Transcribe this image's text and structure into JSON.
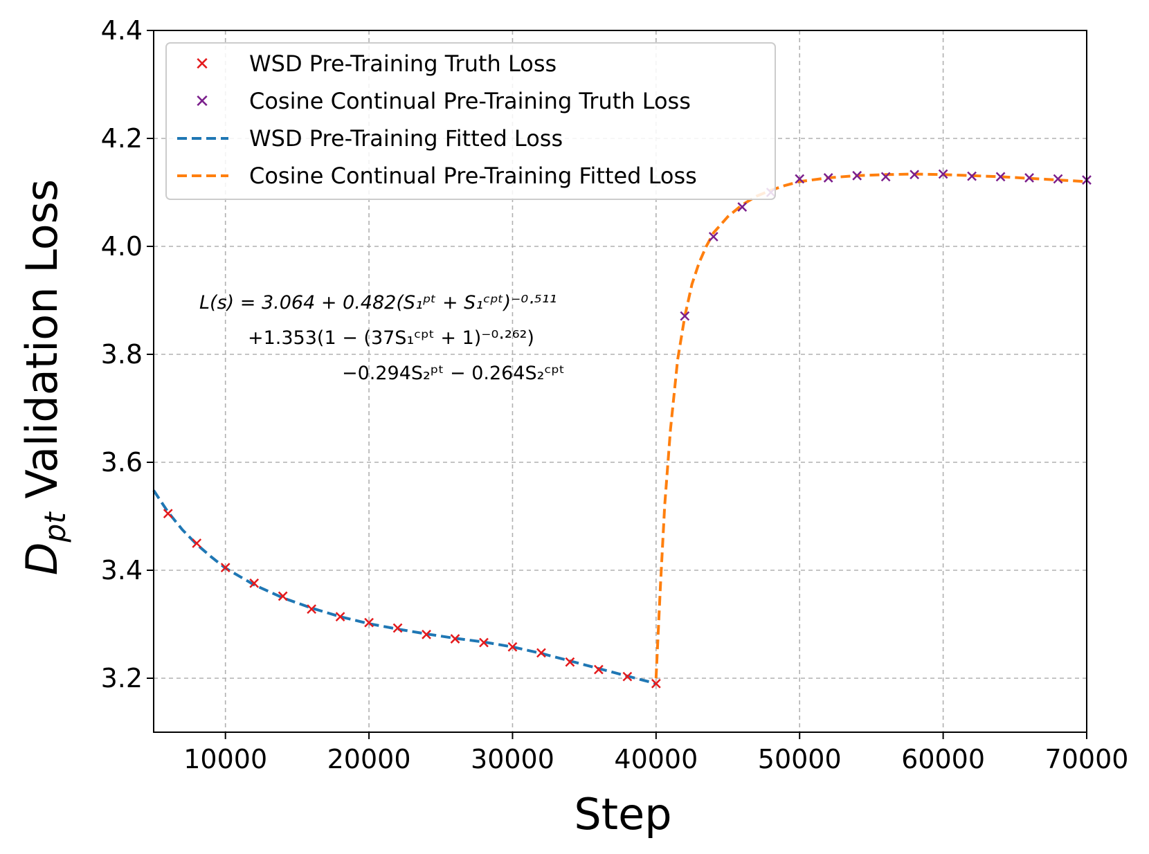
{
  "chart_data": {
    "type": "line",
    "xlabel": "Step",
    "ylabel_main": "D",
    "ylabel_sub": "pt",
    "ylabel_rest": " Validation Loss",
    "xlim": [
      5000,
      70000
    ],
    "ylim": [
      3.1,
      4.4
    ],
    "x_ticks": [
      10000,
      20000,
      30000,
      40000,
      50000,
      60000,
      70000
    ],
    "x_tick_labels": [
      "10000",
      "20000",
      "30000",
      "40000",
      "50000",
      "60000",
      "70000"
    ],
    "y_ticks": [
      3.2,
      3.4,
      3.6,
      3.8,
      4.0,
      4.2,
      4.4
    ],
    "y_tick_labels": [
      "3.2",
      "3.4",
      "3.6",
      "3.8",
      "4.0",
      "4.2",
      "4.4"
    ],
    "grid": true,
    "legend_position": "top-left",
    "series": [
      {
        "name": "WSD Pre-Training Truth Loss",
        "kind": "scatter",
        "marker": "x",
        "color": "#e41a1c",
        "x": [
          6000,
          8000,
          10000,
          12000,
          14000,
          16000,
          18000,
          20000,
          22000,
          24000,
          26000,
          28000,
          30000,
          32000,
          34000,
          36000,
          38000,
          40000
        ],
        "y": [
          3.505,
          3.45,
          3.405,
          3.376,
          3.352,
          3.328,
          3.314,
          3.303,
          3.293,
          3.281,
          3.273,
          3.266,
          3.258,
          3.247,
          3.23,
          3.216,
          3.203,
          3.19
        ]
      },
      {
        "name": "Cosine Continual Pre-Training Truth Loss",
        "kind": "scatter",
        "marker": "x",
        "color": "#7b1f8c",
        "x": [
          42000,
          44000,
          46000,
          48000,
          50000,
          52000,
          54000,
          56000,
          58000,
          60000,
          62000,
          64000,
          66000,
          68000,
          70000
        ],
        "y": [
          3.871,
          4.018,
          4.073,
          4.1,
          4.125,
          4.127,
          4.131,
          4.129,
          4.133,
          4.134,
          4.13,
          4.129,
          4.127,
          4.125,
          4.123
        ]
      },
      {
        "name": "WSD Pre-Training Fitted Loss",
        "kind": "line",
        "dash": true,
        "color": "#1f77b4",
        "x": [
          5000,
          6000,
          7000,
          8000,
          9000,
          10000,
          12000,
          14000,
          16000,
          18000,
          20000,
          22000,
          24000,
          26000,
          28000,
          30000,
          32000,
          34000,
          36000,
          38000,
          40000
        ],
        "y": [
          3.548,
          3.508,
          3.475,
          3.448,
          3.425,
          3.404,
          3.373,
          3.349,
          3.33,
          3.314,
          3.301,
          3.291,
          3.282,
          3.274,
          3.267,
          3.258,
          3.246,
          3.232,
          3.218,
          3.204,
          3.19
        ]
      },
      {
        "name": "Cosine Continual Pre-Training Fitted Loss",
        "kind": "line",
        "dash": true,
        "color": "#ff7f0e",
        "x": [
          40000,
          40300,
          40600,
          41000,
          41500,
          42000,
          42500,
          43000,
          43500,
          44000,
          45000,
          46000,
          47000,
          48000,
          49000,
          50000,
          52000,
          54000,
          56000,
          58000,
          60000,
          62000,
          64000,
          66000,
          68000,
          70000
        ],
        "y": [
          3.2,
          3.37,
          3.52,
          3.66,
          3.79,
          3.87,
          3.93,
          3.97,
          4.0,
          4.025,
          4.055,
          4.077,
          4.093,
          4.104,
          4.113,
          4.12,
          4.127,
          4.131,
          4.133,
          4.134,
          4.133,
          4.131,
          4.129,
          4.126,
          4.123,
          4.12
        ]
      }
    ],
    "annotation": {
      "line1": "L(s) = 3.064 + 0.482(S₁ᵖᵗ + S₁ᶜᵖᵗ)⁻⁰·⁵¹¹",
      "line2": "+1.353(1 − (37S₁ᶜᵖᵗ + 1)⁻⁰·²⁶²)",
      "line3": "−0.294S₂ᵖᵗ − 0.264S₂ᶜᵖᵗ"
    }
  }
}
